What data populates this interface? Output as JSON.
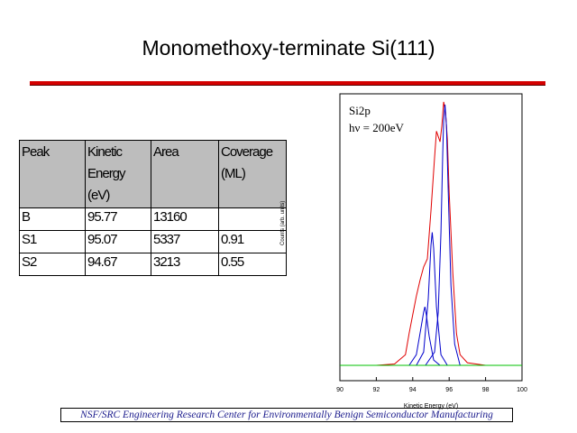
{
  "slide_title": "Monomethoxy-terminate Si(111)",
  "table": {
    "headers": [
      "Peak",
      "Kinetic Energy (eV)",
      "Area",
      "Coverage (ML)"
    ],
    "rows": [
      [
        "B",
        "95.77",
        "13160",
        ""
      ],
      [
        "S1",
        "95.07",
        "5337",
        "0.91"
      ],
      [
        "S2",
        "94.67",
        "3213",
        "0.55"
      ]
    ]
  },
  "footer": "NSF/SRC Engineering Research Center for Environmentally Benign Semiconductor Manufacturing",
  "colors": {
    "rule": "#d40000",
    "total": "#e00000",
    "components": "#0000cc",
    "background_line": "#00c000",
    "footer_text": "#1a1a8c"
  },
  "chart_data": {
    "type": "line",
    "annotation_line1": "Si2p",
    "annotation_line2": "hν = 200eV",
    "xlabel": "Kinetic Energy (eV)",
    "ylabel": "Counts (arb. units)",
    "xlim": [
      90,
      100
    ],
    "ylim": [
      0,
      1.0
    ],
    "x_ticks": [
      90,
      92,
      94,
      96,
      98,
      100
    ],
    "grid": false,
    "series": [
      {
        "x": [
          90.0,
          92.0,
          93.0,
          93.6,
          93.8,
          94.0,
          94.2,
          94.4,
          94.6,
          94.8,
          95.0,
          95.2,
          95.3,
          95.5,
          95.6,
          95.7,
          95.8,
          95.9,
          96.0,
          96.2,
          96.4,
          96.6,
          97.0,
          98.0,
          99.0
        ],
        "values": [
          0.0,
          0.0,
          0.005,
          0.04,
          0.12,
          0.19,
          0.26,
          0.32,
          0.37,
          0.4,
          0.58,
          0.78,
          0.88,
          0.84,
          0.9,
          0.99,
          0.95,
          0.85,
          0.65,
          0.35,
          0.12,
          0.04,
          0.01,
          0.0,
          0.0
        ]
      },
      {
        "x": [
          94.7,
          95.2,
          95.4,
          95.55,
          95.65,
          95.7,
          95.77,
          95.85,
          95.95,
          96.1,
          96.3,
          96.6
        ],
        "values": [
          0.0,
          0.05,
          0.2,
          0.5,
          0.8,
          0.92,
          0.98,
          0.9,
          0.65,
          0.3,
          0.08,
          0.0
        ]
      },
      {
        "x": [
          94.2,
          94.6,
          94.85,
          95.0,
          95.07,
          95.15,
          95.3,
          95.55,
          95.9
        ],
        "values": [
          0.0,
          0.05,
          0.25,
          0.45,
          0.5,
          0.44,
          0.22,
          0.04,
          0.0
        ]
      },
      {
        "x": [
          93.8,
          94.2,
          94.45,
          94.6,
          94.67,
          94.75,
          94.9,
          95.15,
          95.5
        ],
        "values": [
          0.0,
          0.04,
          0.14,
          0.2,
          0.22,
          0.19,
          0.11,
          0.02,
          0.0
        ]
      },
      {
        "x": [
          90.0,
          100.0
        ],
        "values": [
          0.0,
          0.0
        ]
      }
    ]
  }
}
